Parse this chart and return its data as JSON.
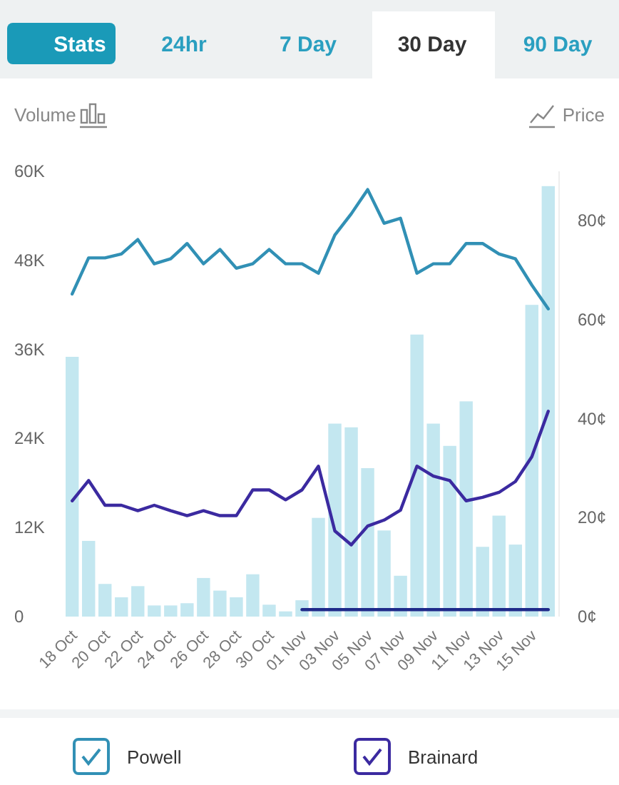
{
  "chart_data": {
    "type": "bar",
    "ylabel": "Volume",
    "y2label": "Price",
    "annotations": [
      "Stats",
      "24hr",
      "7 Day",
      "30 Day",
      "90 Day"
    ],
    "categories": [
      "18 Oct",
      null,
      "20 Oct",
      null,
      "22 Oct",
      null,
      "24 Oct",
      null,
      "26 Oct",
      null,
      "28 Oct",
      null,
      "30 Oct",
      null,
      "01 Nov",
      null,
      "03 Nov",
      null,
      "05 Nov",
      null,
      "07 Nov",
      null,
      "09 Nov",
      null,
      "11 Nov",
      null,
      "13 Nov",
      null,
      "15 Nov",
      null
    ],
    "series": [
      {
        "color": "#c3e7f0",
        "values": [
          35000,
          10200,
          4400,
          2600,
          4100,
          1500,
          1500,
          1800,
          5200,
          3500,
          2600,
          5700,
          1600,
          700,
          2200,
          13300,
          26000,
          25500,
          20000,
          11600,
          5500,
          38000,
          26000,
          23000,
          29000,
          9400,
          13600,
          9700,
          42000,
          58000
        ]
      },
      {
        "type": "line",
        "axis": "y2",
        "name": "Powell",
        "color": "#3190b5",
        "values": [
          65.2,
          72.5,
          72.5,
          73.3,
          76.2,
          71.3,
          72.3,
          75.4,
          71.3,
          74.2,
          70.4,
          71.3,
          74.2,
          71.3,
          71.3,
          69.4,
          77.1,
          81.4,
          86.3,
          79.5,
          80.5,
          69.4,
          71.3,
          71.3,
          75.4,
          75.4,
          73.3,
          72.3,
          67,
          62.2
        ]
      },
      {
        "type": "line",
        "axis": "y2",
        "name": "Brainard",
        "color": "#3b2aa0",
        "values": [
          23.4,
          27.5,
          22.5,
          22.5,
          21.4,
          22.5,
          21.4,
          20.4,
          21.4,
          20.4,
          20.4,
          25.6,
          25.6,
          23.6,
          25.6,
          30.4,
          17.3,
          14.5,
          18.3,
          19.5,
          21.5,
          30.4,
          28.4,
          27.5,
          23.4,
          24.1,
          25.1,
          27.3,
          32.3,
          41.5
        ]
      },
      {
        "type": "line",
        "axis": "y2",
        "color": "#1f2a8a",
        "values": [
          null,
          null,
          null,
          null,
          null,
          null,
          null,
          null,
          null,
          null,
          null,
          null,
          null,
          null,
          1.4,
          1.4,
          1.4,
          1.4,
          1.4,
          1.4,
          1.4,
          1.4,
          1.4,
          1.4,
          1.4,
          1.4,
          1.4,
          1.4,
          1.4,
          1.4
        ]
      }
    ],
    "ylim": [
      0,
      60000
    ],
    "yticks": [
      {
        "value": 0,
        "label": "0"
      },
      {
        "value": 12000,
        "label": "12K"
      },
      {
        "value": 24000,
        "label": "24K"
      },
      {
        "value": 36000,
        "label": "36K"
      },
      {
        "value": 48000,
        "label": "48K"
      },
      {
        "value": 60000,
        "label": "60K"
      }
    ],
    "y2lim": [
      0,
      90
    ],
    "y2ticks": [
      {
        "value": 0,
        "label": "0¢"
      },
      {
        "value": 20,
        "label": "20¢"
      },
      {
        "value": 40,
        "label": "40¢"
      },
      {
        "value": 60,
        "label": "60¢"
      },
      {
        "value": 80,
        "label": "80¢"
      }
    ],
    "grid": false,
    "legend": "bottom",
    "marker": "none",
    "line_style": "solid"
  }
}
